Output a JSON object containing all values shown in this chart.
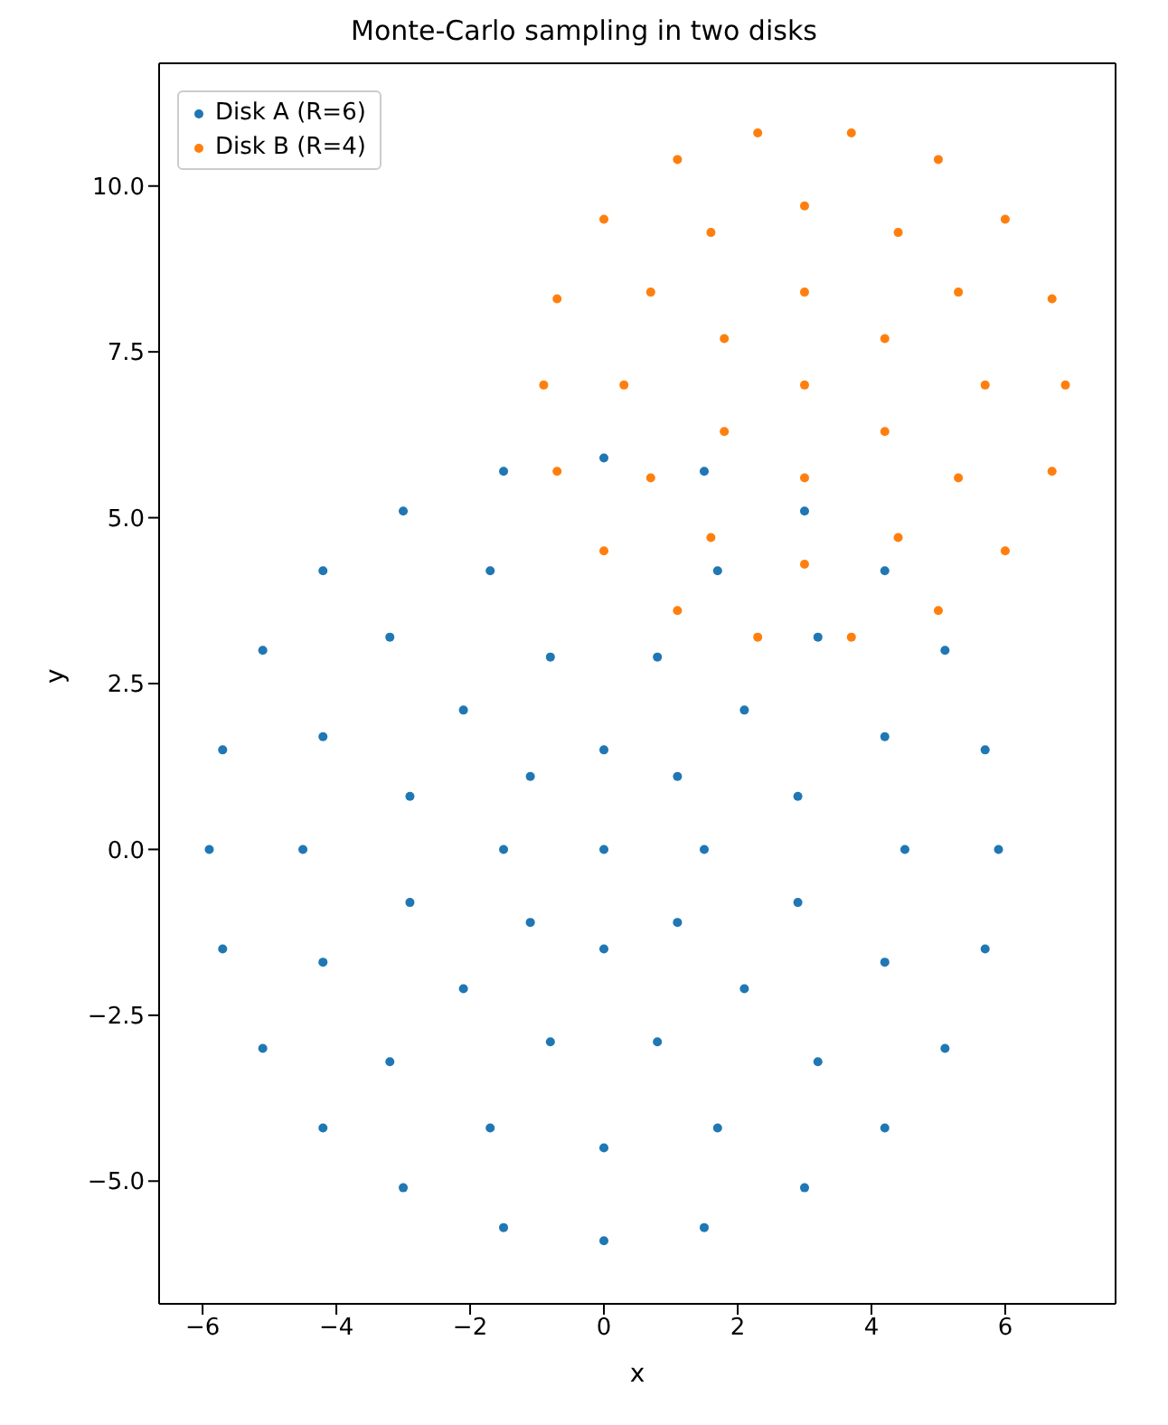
{
  "chart_data": {
    "type": "scatter",
    "title": "Monte-Carlo sampling in two disks",
    "xlabel": "x",
    "ylabel": "y",
    "xlim": [
      -6.65,
      7.65
    ],
    "ylim": [
      -6.85,
      11.85
    ],
    "xticks": [
      -6,
      -4,
      -2,
      0,
      2,
      4,
      6
    ],
    "yticks": [
      {
        "value": -5,
        "label": "−5.0"
      },
      {
        "value": -2.5,
        "label": "−2.5"
      },
      {
        "value": 0,
        "label": "0.0"
      },
      {
        "value": 2.5,
        "label": "2.5"
      },
      {
        "value": 5,
        "label": "5.0"
      },
      {
        "value": 7.5,
        "label": "7.5"
      },
      {
        "value": 10,
        "label": "10.0"
      }
    ],
    "grid": false,
    "legend": "top left",
    "marker": "circle",
    "series": [
      {
        "name": "Disk A (R=6)",
        "color": "#1f77b4",
        "x": [
          5.9,
          5.7,
          5.1,
          4.2,
          3.0,
          1.5,
          0,
          -1.5,
          -3.0,
          -4.2,
          -5.1,
          -5.7,
          -5.9,
          -5.7,
          -5.1,
          -4.2,
          -3.0,
          -1.5,
          0,
          1.5,
          3.0,
          4.2,
          5.1,
          5.7,
          4.5,
          4.2,
          3.2,
          1.7,
          0,
          -1.7,
          -3.2,
          -4.2,
          -4.5,
          -4.2,
          -3.2,
          -1.7,
          0,
          1.7,
          3.2,
          4.2,
          2.9,
          2.1,
          0.8,
          -0.8,
          -2.1,
          -2.9,
          -2.9,
          -2.1,
          -0.8,
          0.8,
          2.1,
          2.9,
          1.5,
          1.1,
          0,
          -1.1,
          -1.5,
          -1.1,
          0,
          1.1,
          0
        ],
        "values": [
          0,
          1.5,
          3.0,
          4.2,
          5.1,
          5.7,
          5.9,
          5.7,
          5.1,
          4.2,
          3.0,
          1.5,
          0,
          -1.5,
          -3.0,
          -4.2,
          -5.1,
          -5.7,
          -5.9,
          -5.7,
          -5.1,
          -4.2,
          -3.0,
          -1.5,
          0,
          1.7,
          3.2,
          4.2,
          null,
          4.2,
          3.2,
          1.7,
          0,
          -1.7,
          -3.2,
          -4.2,
          -4.5,
          -4.2,
          -3.2,
          -1.7,
          0.8,
          2.1,
          2.9,
          2.9,
          2.1,
          0.8,
          -0.8,
          -2.1,
          -2.9,
          -2.9,
          -2.1,
          -0.8,
          0,
          1.1,
          1.5,
          1.1,
          0,
          -1.1,
          -1.5,
          -1.1,
          0
        ]
      },
      {
        "name": "Disk B (R=4)",
        "color": "#ff7f0e",
        "x": [
          6.9,
          6.7,
          6.0,
          5.0,
          3.7,
          2.3,
          1.1,
          0.0,
          -0.7,
          -0.9,
          -0.7,
          0.0,
          1.1,
          2.3,
          3.7,
          5.0,
          6.0,
          6.7,
          5.7,
          5.3,
          4.4,
          3,
          1.6,
          0.7,
          0.3,
          0.7,
          1.6,
          3,
          4.4,
          5.3,
          4.2,
          3,
          1.8,
          1.8,
          3,
          4.2,
          3
        ],
        "values": [
          7,
          8.3,
          9.5,
          10.4,
          10.8,
          10.8,
          10.4,
          9.5,
          8.3,
          7,
          5.7,
          4.5,
          3.6,
          3.2,
          3.2,
          3.6,
          4.5,
          5.7,
          7,
          8.4,
          9.3,
          9.7,
          9.3,
          8.4,
          7,
          5.6,
          4.7,
          4.3,
          4.7,
          5.6,
          7.7,
          8.4,
          7.7,
          6.3,
          5.6,
          6.3,
          7
        ]
      }
    ]
  }
}
